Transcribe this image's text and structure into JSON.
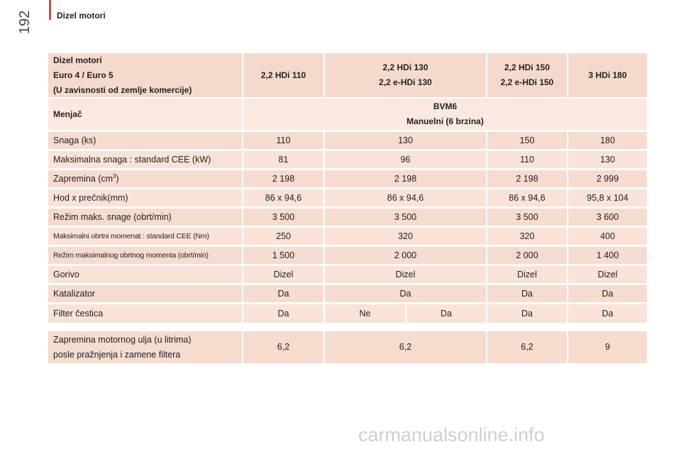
{
  "page_number": "192",
  "section_title": "Dizel motori",
  "table": {
    "header": [
      [
        "Dizel motori",
        "Euro 4 / Euro 5",
        "(U zavisnosti od zemlje komercije)"
      ],
      [
        "2,2 HDi 110"
      ],
      [
        "2,2 HDi 130",
        "2,2 e-HDi 130"
      ],
      [
        "2,2 HDi 150",
        "2,2 e-HDi 150"
      ],
      [
        "3 HDi 180"
      ]
    ],
    "gearbox": [
      [
        "Menjač"
      ],
      [
        "BVM6",
        "Manuelni (6 brzina)"
      ]
    ],
    "rows": [
      [
        "Snaga (ks)",
        "110",
        "130",
        "150",
        "180"
      ],
      [
        "Maksimalna snaga : standard CEE (kW)",
        "81",
        "96",
        "110",
        "130"
      ],
      [
        {
          "text": "Zapremina (cm",
          "sup": "3",
          "after": ")"
        },
        "2 198",
        "2 198",
        "2 198",
        "2 999"
      ],
      [
        "Hod x prečnik(mm)",
        "86 x 94,6",
        "86 x 94,6",
        "86 x 94,6",
        "95,8 x 104"
      ],
      [
        "Režim maks. snage (obrt/min)",
        "3 500",
        "3 500",
        "3 500",
        "3 600"
      ],
      [
        "Maksimalni obrtni momenat : standard CEE (Nm)",
        "250",
        "320",
        "320",
        "400"
      ],
      [
        "Režim maksimalnog obrtnog momenta (obrt/min)",
        "1 500",
        "2 000",
        "2 000",
        "1 400"
      ],
      [
        "Gorivo",
        "Dizel",
        "Dizel",
        "Dizel",
        "Dizel"
      ],
      [
        "Katalizator",
        "Da",
        "Da",
        "Da",
        "Da"
      ],
      [
        "Filter čestica",
        "Da",
        "Ne",
        "Da",
        "Da",
        "Da"
      ]
    ],
    "oil": [
      [
        "Zapremina motornog ulja (u litrima)",
        "posle pražnjenja i zamene filtera"
      ],
      [
        "6,2"
      ],
      [
        "6,2"
      ],
      [
        "6,2"
      ],
      [
        "9"
      ]
    ]
  },
  "watermark": "carmanualsonline.info"
}
